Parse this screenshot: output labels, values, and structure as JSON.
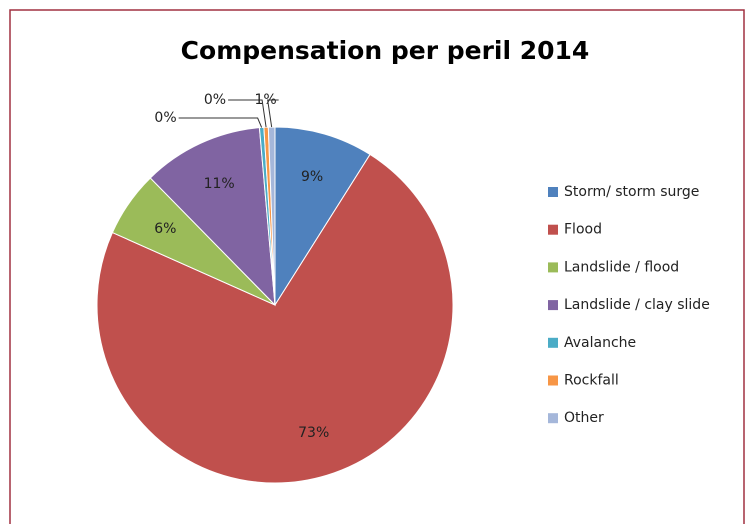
{
  "chart_data": {
    "type": "pie",
    "title": "Compensation per peril 2014",
    "categories": [
      "Storm/ storm surge",
      "Flood",
      "Landslide / flood",
      "Landslide / clay slide",
      "Avalanche",
      "Rockfall",
      "Other"
    ],
    "values": [
      9,
      73,
      6,
      11,
      0.4,
      0.4,
      0.6
    ],
    "value_labels": [
      "9%",
      "73%",
      "6%",
      "11%",
      "0%",
      "0%",
      "1%"
    ],
    "colors": [
      "#4f81bd",
      "#c0504d",
      "#9bbb59",
      "#8064a2",
      "#4bacc6",
      "#f79646",
      "#a5b7da"
    ],
    "legend": "right"
  }
}
